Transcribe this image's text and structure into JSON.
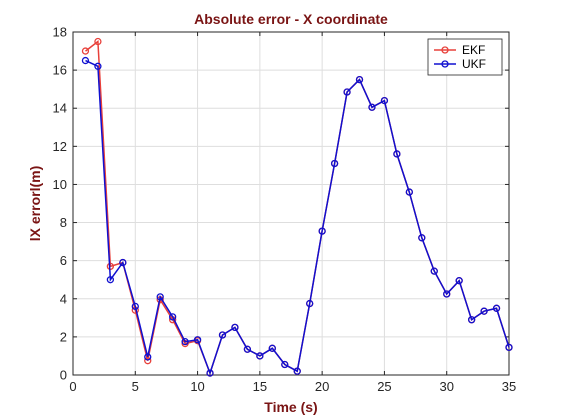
{
  "chart_data": {
    "type": "line",
    "title": "Absolute error - X coordinate",
    "xlabel": "Time (s)",
    "ylabel": "lX errorl(m)",
    "xlim": [
      0,
      35
    ],
    "ylim": [
      0,
      18
    ],
    "xticks": [
      0,
      5,
      10,
      15,
      20,
      25,
      30,
      35
    ],
    "yticks": [
      0,
      2,
      4,
      6,
      8,
      10,
      12,
      14,
      16,
      18
    ],
    "grid": true,
    "legend_position": "top-right",
    "x": [
      1,
      2,
      3,
      4,
      5,
      6,
      7,
      8,
      9,
      10,
      11,
      12,
      13,
      14,
      15,
      16,
      17,
      18,
      19,
      20,
      21,
      22,
      23,
      24,
      25,
      26,
      27,
      28,
      29,
      30,
      31,
      32,
      33,
      34,
      35
    ],
    "series": [
      {
        "name": "EKF",
        "color": "#e8403a",
        "values": [
          17.0,
          17.5,
          5.7,
          5.9,
          3.4,
          0.75,
          3.95,
          2.9,
          1.65,
          1.8,
          0.1,
          2.1,
          2.5,
          1.35,
          1.0,
          1.4,
          0.55,
          0.2,
          3.75,
          7.55,
          11.1,
          14.85,
          15.5,
          14.05,
          14.4,
          11.6,
          9.6,
          7.2,
          5.45,
          4.25,
          4.95,
          2.9,
          3.35,
          3.5,
          1.45
        ]
      },
      {
        "name": "UKF",
        "color": "#1010d0",
        "values": [
          16.5,
          16.2,
          5.0,
          5.9,
          3.6,
          0.95,
          4.1,
          3.05,
          1.75,
          1.85,
          0.1,
          2.1,
          2.5,
          1.35,
          1.0,
          1.4,
          0.55,
          0.2,
          3.75,
          7.55,
          11.1,
          14.85,
          15.5,
          14.05,
          14.4,
          11.6,
          9.6,
          7.2,
          5.45,
          4.25,
          4.95,
          2.9,
          3.35,
          3.5,
          1.45
        ]
      }
    ]
  }
}
